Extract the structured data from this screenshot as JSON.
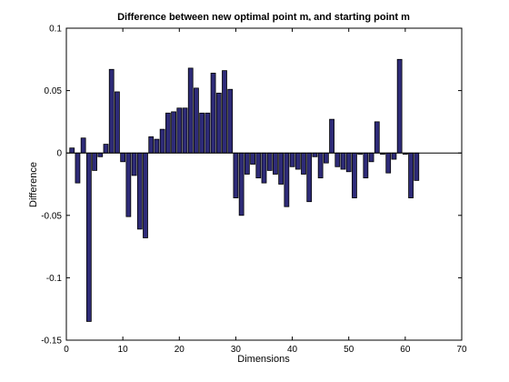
{
  "chart_data": {
    "type": "bar",
    "title": {
      "main": "Difference between new optimal point m",
      "subscript": "*",
      "rest": " and starting point m"
    },
    "xlabel": "Dimensions",
    "ylabel": "Difference",
    "xlim": [
      0,
      70
    ],
    "ylim": [
      -0.15,
      0.1
    ],
    "xticks": [
      0,
      10,
      20,
      30,
      40,
      50,
      60,
      70
    ],
    "yticks": [
      -0.15,
      -0.1,
      -0.05,
      0,
      0.05,
      0.1
    ],
    "xtick_labels": [
      "0",
      "10",
      "20",
      "30",
      "40",
      "50",
      "60",
      "70"
    ],
    "ytick_labels": [
      "-0.15",
      "-0.1",
      "-0.05",
      "0",
      "0.05",
      "0.1"
    ],
    "grid": false,
    "bar_color": "#2e2b78",
    "bar_edge_color": "#000000",
    "x": [
      1,
      2,
      3,
      4,
      5,
      6,
      7,
      8,
      9,
      10,
      11,
      12,
      13,
      14,
      15,
      16,
      17,
      18,
      19,
      20,
      21,
      22,
      23,
      24,
      25,
      26,
      27,
      28,
      29,
      30,
      31,
      32,
      33,
      34,
      35,
      36,
      37,
      38,
      39,
      40,
      41,
      42,
      43,
      44,
      45,
      46,
      47,
      48,
      49,
      50,
      51,
      52,
      53,
      54,
      55,
      56,
      57,
      58,
      59,
      60,
      61,
      62
    ],
    "values": [
      0.004,
      -0.024,
      0.012,
      -0.135,
      -0.014,
      -0.003,
      0.007,
      0.067,
      0.049,
      -0.007,
      -0.051,
      -0.018,
      -0.061,
      -0.068,
      0.013,
      0.011,
      0.019,
      0.032,
      0.033,
      0.036,
      0.036,
      0.068,
      0.052,
      0.032,
      0.032,
      0.064,
      0.048,
      0.066,
      0.051,
      -0.036,
      -0.05,
      -0.017,
      -0.009,
      -0.02,
      -0.024,
      -0.014,
      -0.017,
      -0.025,
      -0.043,
      -0.011,
      -0.013,
      -0.017,
      -0.039,
      -0.003,
      -0.02,
      -0.008,
      0.027,
      -0.011,
      -0.013,
      -0.015,
      -0.036,
      -0.001,
      -0.02,
      -0.007,
      0.025,
      -0.001,
      -0.016,
      -0.005,
      0.075,
      -0.001,
      -0.036,
      -0.022
    ]
  }
}
